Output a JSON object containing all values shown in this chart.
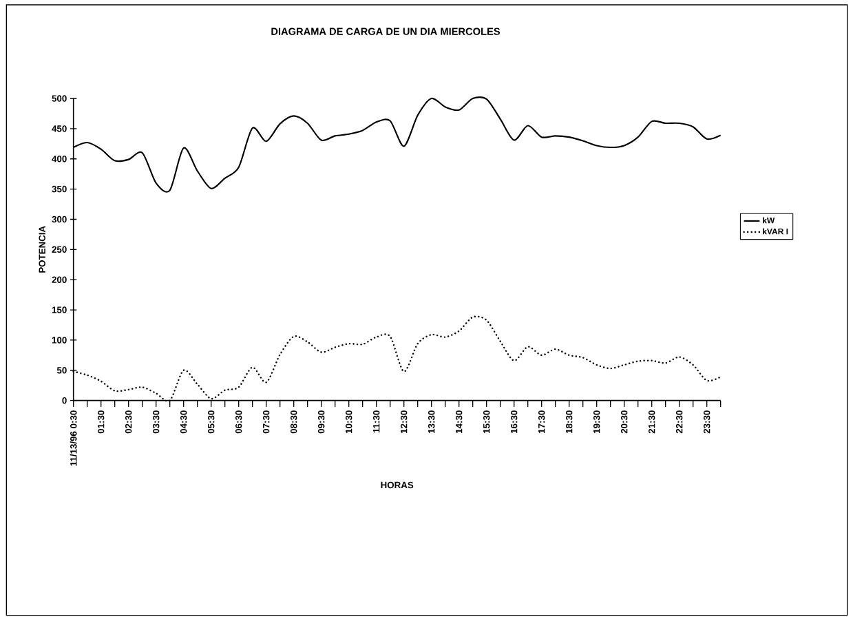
{
  "chart_data": {
    "type": "line",
    "title": "DIAGRAMA DE CARGA DE UN DIA MIERCOLES",
    "xlabel": "HORAS",
    "ylabel": "POTENCIA",
    "categories": [
      "11/13/96 0:30",
      null,
      "01:30",
      null,
      "02:30",
      null,
      "03:30",
      null,
      "04:30",
      null,
      "05:30",
      null,
      "06:30",
      null,
      "07:30",
      null,
      "08:30",
      null,
      "09:30",
      null,
      "10:30",
      null,
      "11:30",
      null,
      "12:30",
      null,
      "13:30",
      null,
      "14:30",
      null,
      "15:30",
      null,
      "16:30",
      null,
      "17:30",
      null,
      "18:30",
      null,
      "19:30",
      null,
      "20:30",
      null,
      "21:30",
      null,
      "22:30",
      null,
      "23:30",
      null
    ],
    "series": [
      {
        "name": "kW",
        "color": "#000000",
        "line_style": "solid",
        "values": [
          419,
          427,
          416,
          397,
          399,
          410,
          360,
          348,
          418,
          380,
          351,
          368,
          386,
          451,
          429,
          458,
          471,
          459,
          431,
          438,
          441,
          447,
          461,
          463,
          421,
          472,
          500,
          486,
          481,
          500,
          499,
          466,
          431,
          455,
          436,
          438,
          436,
          430,
          422,
          419,
          422,
          436,
          462,
          459,
          459,
          453,
          433,
          439
        ]
      },
      {
        "name": "kVAR I",
        "color": "#000000",
        "line_style": "dotted",
        "values": [
          48,
          42,
          32,
          16,
          18,
          22,
          12,
          0,
          50,
          27,
          3,
          17,
          22,
          55,
          30,
          76,
          106,
          97,
          80,
          88,
          94,
          93,
          105,
          106,
          48,
          94,
          109,
          105,
          115,
          138,
          133,
          98,
          66,
          89,
          75,
          85,
          75,
          71,
          59,
          53,
          59,
          65,
          66,
          62,
          72,
          59,
          33,
          39
        ]
      }
    ],
    "ylim": [
      0,
      500
    ],
    "yticks": [
      0,
      50,
      100,
      150,
      200,
      250,
      300,
      350,
      400,
      450,
      500
    ],
    "grid": false,
    "legend": "right",
    "marker": "none"
  }
}
